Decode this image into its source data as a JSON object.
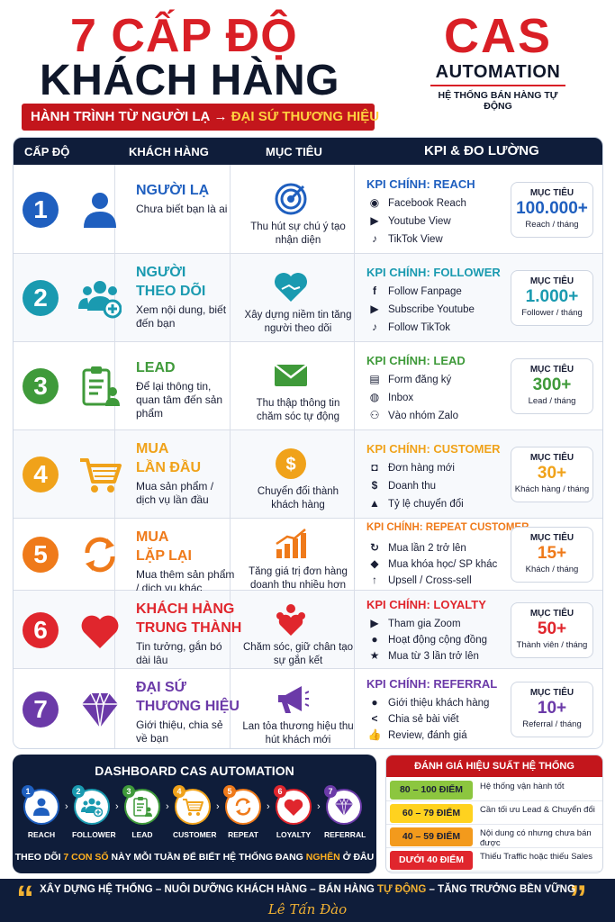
{
  "header": {
    "title_line1": "7 CẤP ĐỘ",
    "title_line2": "KHÁCH HÀNG",
    "ribbon_prefix": "HÀNH TRÌNH TỪ NGƯỜI LẠ →",
    "ribbon_highlight": "ĐẠI SỨ THƯƠNG HIỆU"
  },
  "logo": {
    "brand": "CAS",
    "product": "AUTOMATION",
    "tagline": "HỆ THỐNG BÁN HÀNG TỰ ĐỘNG"
  },
  "table_header": {
    "level": "CẤP ĐỘ",
    "customer": "KHÁCH HÀNG",
    "goal": "MỤC TIÊU",
    "kpi": "KPI & ĐO LƯỜNG"
  },
  "rows": [
    {
      "num": "1",
      "color": "#1f5fbf",
      "name1": "NGƯỜI LẠ",
      "name2": "",
      "desc": "Chưa biết bạn là ai",
      "icon": "person-icon",
      "goal_icon": "target-icon",
      "goal": "Thu hút sự chú ý tạo nhận diện",
      "kpi_title": "KPI CHÍNH:  REACH",
      "kpis": [
        {
          "icon": "eye-icon",
          "glyph": "◉",
          "text": "Facebook Reach"
        },
        {
          "icon": "youtube-icon",
          "glyph": "▶",
          "text": "Youtube View"
        },
        {
          "icon": "tiktok-icon",
          "glyph": "♪",
          "text": "TikTok View"
        }
      ],
      "target_label": "MỤC TIÊU",
      "target_value": "100.000+",
      "target_unit": "Reach / tháng"
    },
    {
      "num": "2",
      "color": "#1a9ab0",
      "name1": "NGƯỜI",
      "name2": "THEO DÕI",
      "desc": "Xem nội dung, biết đến bạn",
      "icon": "group-add-icon",
      "goal_icon": "handshake-heart-icon",
      "goal": "Xây dựng niềm tin tăng người theo dõi",
      "kpi_title": "KPI CHÍNH:  FOLLOWER",
      "kpis": [
        {
          "icon": "facebook-icon",
          "glyph": "f",
          "text": "Follow Fanpage"
        },
        {
          "icon": "youtube-icon",
          "glyph": "▶",
          "text": "Subscribe Youtube"
        },
        {
          "icon": "tiktok-icon",
          "glyph": "♪",
          "text": "Follow TikTok"
        }
      ],
      "target_label": "MỤC TIÊU",
      "target_value": "1.000+",
      "target_unit": "Follower / tháng"
    },
    {
      "num": "3",
      "color": "#3f9a3a",
      "name1": "LEAD",
      "name2": "",
      "desc": "Để lại thông tin, quan tâm đến sản phẩm",
      "icon": "form-person-icon",
      "goal_icon": "envelope-icon",
      "goal": "Thu thập thông tin chăm sóc tự động",
      "kpi_title": "KPI CHÍNH:  LEAD",
      "kpis": [
        {
          "icon": "form-icon",
          "glyph": "▤",
          "text": "Form đăng ký"
        },
        {
          "icon": "messenger-icon",
          "glyph": "◍",
          "text": "Inbox"
        },
        {
          "icon": "group-icon",
          "glyph": "⚇",
          "text": "Vào nhóm Zalo"
        }
      ],
      "target_label": "MỤC TIÊU",
      "target_value": "300+",
      "target_unit": "Lead / tháng"
    },
    {
      "num": "4",
      "color": "#f0a21a",
      "name1": "MUA",
      "name2": "LẦN ĐẦU",
      "desc": "Mua sản phẩm / dịch vụ lần đầu",
      "icon": "cart-icon",
      "goal_icon": "dollar-coin-icon",
      "goal": "Chuyển đổi thành khách hàng",
      "kpi_title": "KPI CHÍNH:  CUSTOMER",
      "kpis": [
        {
          "icon": "bag-icon",
          "glyph": "◘",
          "text": "Đơn hàng mới"
        },
        {
          "icon": "money-icon",
          "glyph": "$",
          "text": "Doanh thu"
        },
        {
          "icon": "chart-icon",
          "glyph": "▲",
          "text": "Tỷ lệ chuyển đổi"
        }
      ],
      "target_label": "MỤC TIÊU",
      "target_value": "30+",
      "target_unit": "Khách hàng / tháng"
    },
    {
      "num": "5",
      "color": "#ef7a1a",
      "name1": "MUA",
      "name2": "LẶP LẠI",
      "desc": "Mua thêm sản phẩm / dịch vụ khác",
      "icon": "repeat-icon",
      "goal_icon": "growth-chart-icon",
      "goal": "Tăng giá trị đơn hàng doanh thu nhiều hơn",
      "kpi_title": "KPI CHÍNH:  REPEAT CUSTOMER",
      "kpis": [
        {
          "icon": "repeat-icon",
          "glyph": "↻",
          "text": "Mua lần 2 trở lên"
        },
        {
          "icon": "tag-icon",
          "glyph": "◆",
          "text": "Mua khóa học/ SP khác"
        },
        {
          "icon": "arrow-up-icon",
          "glyph": "↑",
          "text": "Upsell / Cross-sell"
        }
      ],
      "target_label": "MỤC TIÊU",
      "target_value": "15+",
      "target_unit": "Khách / tháng"
    },
    {
      "num": "6",
      "color": "#e0262d",
      "name1": "KHÁCH HÀNG",
      "name2": "TRUNG THÀNH",
      "desc": "Tin tưởng, gắn bó dài lâu",
      "icon": "heart-icon",
      "goal_icon": "community-icon",
      "goal": "Chăm sóc, giữ chân tạo sự gắn kết",
      "kpi_title": "KPI CHÍNH:  LOYALTY",
      "kpis": [
        {
          "icon": "video-icon",
          "glyph": "▶",
          "text": "Tham gia Zoom"
        },
        {
          "icon": "chat-icon",
          "glyph": "●",
          "text": "Hoạt động cộng đồng"
        },
        {
          "icon": "star-icon",
          "glyph": "★",
          "text": "Mua từ 3 lần trở lên"
        }
      ],
      "target_label": "MỤC TIÊU",
      "target_value": "50+",
      "target_unit": "Thành viên / tháng"
    },
    {
      "num": "7",
      "color": "#6b3aa8",
      "name1": "ĐẠI SỨ",
      "name2": "THƯƠNG HIỆU",
      "desc": "Giới thiệu, chia sẻ về bạn",
      "icon": "diamond-icon",
      "goal_icon": "megaphone-icon",
      "goal": "Lan tỏa thương hiệu thu hút khách mới",
      "kpi_title": "KPI CHÍNH:  REFERRAL",
      "kpis": [
        {
          "icon": "person-icon",
          "glyph": "●",
          "text": "Giới thiệu khách hàng"
        },
        {
          "icon": "share-icon",
          "glyph": "<",
          "text": "Chia sẻ bài viết"
        },
        {
          "icon": "thumbs-up-icon",
          "glyph": "👍",
          "text": "Review, đánh giá"
        }
      ],
      "target_label": "MỤC TIÊU",
      "target_value": "10+",
      "target_unit": "Referral / tháng"
    }
  ],
  "dashboard": {
    "title": "DASHBOARD CAS AUTOMATION",
    "steps": [
      {
        "n": "1",
        "label": "REACH"
      },
      {
        "n": "2",
        "label": "FOLLOWER"
      },
      {
        "n": "3",
        "label": "LEAD"
      },
      {
        "n": "4",
        "label": "CUSTOMER"
      },
      {
        "n": "5",
        "label": "REPEAT"
      },
      {
        "n": "6",
        "label": "LOYALTY"
      },
      {
        "n": "7",
        "label": "REFERRAL"
      }
    ],
    "foot_a": "THEO DÕI ",
    "foot_b": "7 CON SỐ",
    "foot_c": " NÀY MỖI TUẦN ĐỂ BIẾT HỆ THỐNG ĐANG ",
    "foot_d": "NGHẼN",
    "foot_e": " Ở ĐÂU"
  },
  "evaluation": {
    "title": "ĐÁNH GIÁ HIỆU SUẤT HỆ THỐNG",
    "rows": [
      {
        "range": "80 – 100 ĐIỂM",
        "desc": "Hệ thống vận hành tốt",
        "bg": "#8cc63f",
        "fg": "#1a1f36"
      },
      {
        "range": "60 – 79 ĐIỂM",
        "desc": "Cần tối ưu Lead & Chuyển đổi",
        "bg": "#ffd21f",
        "fg": "#1a1f36"
      },
      {
        "range": "40 – 59 ĐIỂM",
        "desc": "Nội dung có nhưng chưa bán được",
        "bg": "#f39a1c",
        "fg": "#1a1f36"
      },
      {
        "range": "DƯỚI 40 ĐIỂM",
        "desc": "Thiếu Traffic hoặc thiếu Sales",
        "bg": "#e0262d",
        "fg": "#ffffff"
      }
    ]
  },
  "footer": {
    "t1": "XÂY DỰNG HỆ THỐNG – NUÔI DƯỠNG KHÁCH HÀNG – BÁN HÀNG ",
    "t2": "TỰ ĐỘNG",
    "t3": " – TĂNG TRƯỞNG BỀN VỮNG",
    "signature": "Lê Tấn Đào"
  }
}
